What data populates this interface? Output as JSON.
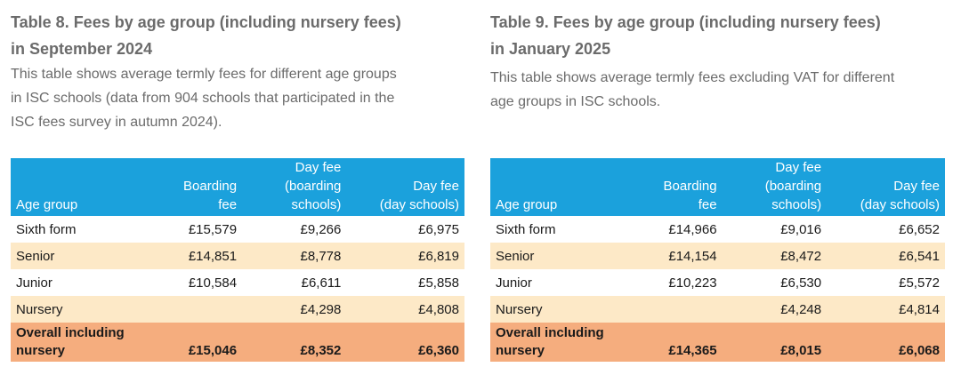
{
  "table8": {
    "title_line1": "Table 8. Fees by age group (including nursery fees)",
    "title_line2": "in September 2024",
    "desc_line1": "This table shows average termly fees for different age groups",
    "desc_line2": "in ISC schools (data from 904 schools that participated in the",
    "desc_line3": "ISC fees survey in autumn 2024).",
    "headers": {
      "age_group": "Age group",
      "boarding_fee": [
        "Boarding",
        "fee"
      ],
      "day_fee_boarding": [
        "Day fee",
        "(boarding",
        "schools)"
      ],
      "day_fee_day": [
        "Day fee",
        "(day schools)"
      ]
    },
    "rows": [
      {
        "age_group": "Sixth form",
        "boarding_fee": "£15,579",
        "day_fee_boarding": "£9,266",
        "day_fee_day": "£6,975"
      },
      {
        "age_group": "Senior",
        "boarding_fee": "£14,851",
        "day_fee_boarding": "£8,778",
        "day_fee_day": "£6,819"
      },
      {
        "age_group": "Junior",
        "boarding_fee": "£10,584",
        "day_fee_boarding": "£6,611",
        "day_fee_day": "£5,858"
      },
      {
        "age_group": "Nursery",
        "boarding_fee": "",
        "day_fee_boarding": "£4,298",
        "day_fee_day": "£4,808"
      }
    ],
    "total": {
      "label_line1": "Overall including",
      "label_line2": "nursery",
      "boarding_fee": "£15,046",
      "day_fee_boarding": "£8,352",
      "day_fee_day": "£6,360"
    }
  },
  "table9": {
    "title_line1": "Table 9. Fees by age group (including nursery fees)",
    "title_line2": "in January 2025",
    "desc_line1": "This table shows average termly fees excluding VAT for different",
    "desc_line2": "age groups in ISC schools.",
    "headers": {
      "age_group": "Age group",
      "boarding_fee": [
        "Boarding",
        "fee"
      ],
      "day_fee_boarding": [
        "Day fee",
        "(boarding",
        "schools)"
      ],
      "day_fee_day": [
        "Day fee",
        "(day schools)"
      ]
    },
    "rows": [
      {
        "age_group": "Sixth form",
        "boarding_fee": "£14,966",
        "day_fee_boarding": "£9,016",
        "day_fee_day": "£6,652"
      },
      {
        "age_group": "Senior",
        "boarding_fee": "£14,154",
        "day_fee_boarding": "£8,472",
        "day_fee_day": "£6,541"
      },
      {
        "age_group": "Junior",
        "boarding_fee": "£10,223",
        "day_fee_boarding": "£6,530",
        "day_fee_day": "£5,572"
      },
      {
        "age_group": "Nursery",
        "boarding_fee": "",
        "day_fee_boarding": "£4,248",
        "day_fee_day": "£4,814"
      }
    ],
    "total": {
      "label_line1": "Overall including",
      "label_line2": "nursery",
      "boarding_fee": "£14,365",
      "day_fee_boarding": "£8,015",
      "day_fee_day": "£6,068"
    }
  },
  "colors": {
    "header_bg": "#1ba1dc",
    "row_alt_bg": "#fde9c7",
    "total_bg": "#f5ad7e",
    "title_text": "#6b6b6b"
  }
}
